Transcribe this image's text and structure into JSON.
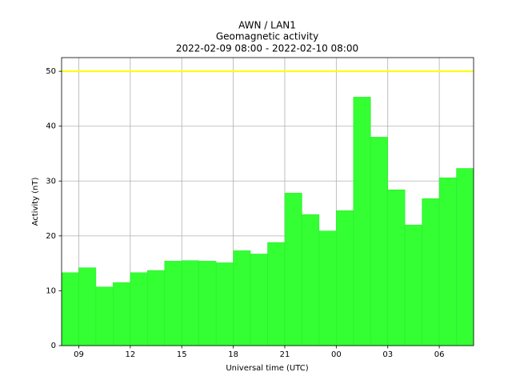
{
  "chart_data": {
    "type": "bar",
    "title": [
      "AWN / LAN1",
      "Geomagnetic activity",
      "2022-02-09 08:00 - 2022-02-10 08:00"
    ],
    "xlabel": "Universal time (UTC)",
    "ylabel": "Activity (nT)",
    "x": [
      8,
      9,
      10,
      11,
      12,
      13,
      14,
      15,
      16,
      17,
      18,
      19,
      20,
      21,
      22,
      23,
      24,
      25,
      26,
      27,
      28,
      29,
      30,
      31
    ],
    "values": [
      13.3,
      14.2,
      10.7,
      11.5,
      13.3,
      13.7,
      15.4,
      15.5,
      15.4,
      15.1,
      17.3,
      16.7,
      18.8,
      27.8,
      23.9,
      20.9,
      24.6,
      45.3,
      38.0,
      28.4,
      22.0,
      26.8,
      30.6,
      32.3
    ],
    "color": "#33ff33",
    "threshold": 50,
    "threshold_color": "#ffff00",
    "xlim": [
      8,
      32
    ],
    "xticks": [
      {
        "value": 9,
        "label": "09"
      },
      12,
      15,
      18,
      21,
      {
        "value": 24,
        "label": "00"
      },
      {
        "value": 27,
        "label": "03"
      },
      {
        "value": 30,
        "label": "06"
      }
    ],
    "ylim": [
      0,
      52.5
    ],
    "yticks": [
      0,
      10,
      20,
      30,
      40,
      50
    ],
    "grid": true
  }
}
